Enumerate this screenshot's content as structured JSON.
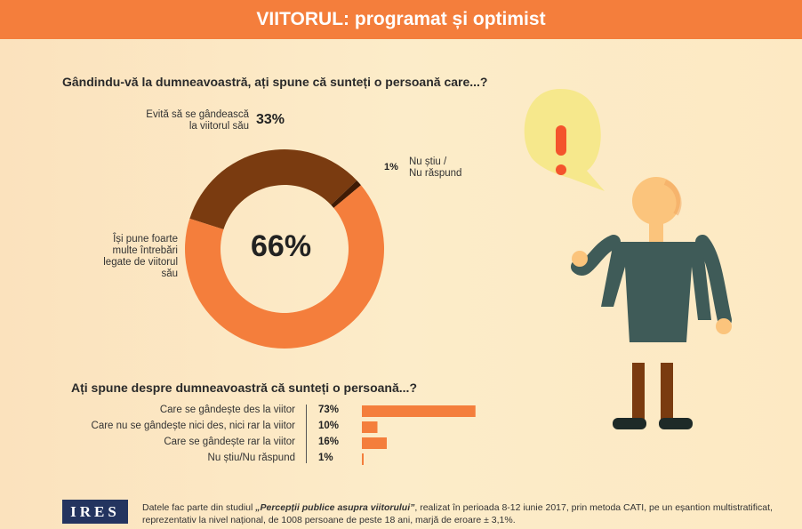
{
  "header": {
    "title": "VIITORUL: programat și optimist"
  },
  "chart_data": [
    {
      "type": "pie",
      "title": "Gândindu-vă la dumneavoastră, ați spune că sunteți o persoană care...?",
      "slices": [
        {
          "label": "Își pune foarte multe întrebări legate de viitorul său",
          "value": 66,
          "display": "66%",
          "color": "#f47e3c"
        },
        {
          "label": "Evită să se gândească la viitorul său",
          "value": 33,
          "display": "33%",
          "color": "#7a3b10"
        },
        {
          "label": "Nu știu / Nu răspund",
          "value": 1,
          "display": "1%",
          "color": "#3f1b05"
        }
      ],
      "label_lines": {
        "big": [
          "Își pune foarte",
          "multe întrebări",
          "legate de viitorul său"
        ],
        "mid": [
          "Evită să se gândească",
          "la viitorul său"
        ],
        "small": [
          "Nu știu /",
          "Nu răspund"
        ]
      }
    },
    {
      "type": "bar",
      "title": "Ați spune despre dumneavoastră că sunteți o persoană...?",
      "categories": [
        "Care se gândește des la viitor",
        "Care nu se gândește nici des, nici rar la viitor",
        "Care se gândește rar la viitor",
        "Nu știu/Nu răspund"
      ],
      "values": [
        73,
        10,
        16,
        1
      ],
      "labels": [
        "73%",
        "10%",
        "16%",
        "1%"
      ],
      "xlim": [
        0,
        100
      ],
      "color": "#f47e3c"
    }
  ],
  "footer": {
    "logo": "IRES",
    "note_prefix": "Datele fac parte din studiul ",
    "study_name": "„Percepții publice asupra viitorului”",
    "note_rest": ", realizat în perioada 8-12 iunie 2017, prin metoda CATI, pe un eșantion multistratificat, reprezentativ la nivel național, de 1008 persoane de peste 18 ani, marjă de eroare ± 3,1%."
  },
  "colors": {
    "accent": "#f47e3c",
    "dark": "#7a3b10",
    "figure_shirt": "#3f5b58",
    "bubble": "#f6e88c"
  },
  "illustration": {
    "icons": [
      "exclamation-icon",
      "person-icon"
    ]
  }
}
